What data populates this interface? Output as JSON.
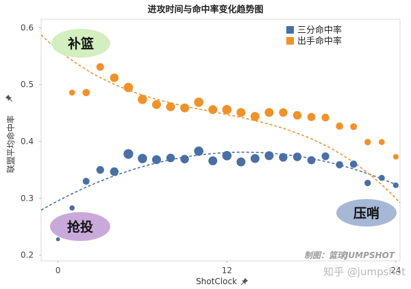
{
  "chart_data": {
    "type": "scatter",
    "title": "进攻时间与命中率变化趋势图",
    "xlabel": "ShotClock",
    "ylabel": "联盟平均命中率",
    "xlim": [
      -1.2,
      24.3
    ],
    "ylim": [
      0.19,
      0.615
    ],
    "x_ticks": [
      0,
      12,
      24
    ],
    "x_tick_labels": [
      "0",
      "12",
      "24"
    ],
    "y_ticks": [
      0.2,
      0.3,
      0.4,
      0.5,
      0.6
    ],
    "y_tick_labels": [
      "0.2",
      "0.3",
      "0.4",
      "0.5",
      "0.6"
    ],
    "legend_position": "top-right",
    "grid": false,
    "series": [
      {
        "name": "三分命中率",
        "color": "#4a6fa5",
        "points": [
          {
            "x": 0,
            "y": 0.228,
            "w": 0.15
          },
          {
            "x": 1,
            "y": 0.283,
            "w": 0.3
          },
          {
            "x": 2,
            "y": 0.33,
            "w": 0.5
          },
          {
            "x": 3,
            "y": 0.35,
            "w": 0.6
          },
          {
            "x": 4,
            "y": 0.347,
            "w": 0.7
          },
          {
            "x": 5,
            "y": 0.378,
            "w": 0.85
          },
          {
            "x": 6,
            "y": 0.37,
            "w": 0.8
          },
          {
            "x": 7,
            "y": 0.368,
            "w": 0.75
          },
          {
            "x": 8,
            "y": 0.371,
            "w": 0.7
          },
          {
            "x": 9,
            "y": 0.369,
            "w": 0.7
          },
          {
            "x": 10,
            "y": 0.383,
            "w": 0.8
          },
          {
            "x": 11,
            "y": 0.366,
            "w": 0.75
          },
          {
            "x": 12,
            "y": 0.375,
            "w": 0.8
          },
          {
            "x": 13,
            "y": 0.364,
            "w": 0.75
          },
          {
            "x": 14,
            "y": 0.37,
            "w": 0.75
          },
          {
            "x": 15,
            "y": 0.375,
            "w": 0.75
          },
          {
            "x": 16,
            "y": 0.372,
            "w": 0.7
          },
          {
            "x": 17,
            "y": 0.373,
            "w": 0.7
          },
          {
            "x": 18,
            "y": 0.367,
            "w": 0.65
          },
          {
            "x": 19,
            "y": 0.374,
            "w": 0.6
          },
          {
            "x": 20,
            "y": 0.359,
            "w": 0.55
          },
          {
            "x": 21,
            "y": 0.36,
            "w": 0.55
          },
          {
            "x": 22,
            "y": 0.327,
            "w": 0.45
          },
          {
            "x": 23,
            "y": 0.336,
            "w": 0.4
          },
          {
            "x": 24,
            "y": 0.323,
            "w": 0.35
          }
        ],
        "trend": {
          "type": "quadratic",
          "x_range": [
            -1.2,
            24.3
          ],
          "coef": [
            0.2955,
            0.01296,
            -0.0004902
          ]
        }
      },
      {
        "name": "出手命中率",
        "color": "#f0922a",
        "points": [
          {
            "x": 0,
            "y": 0.584,
            "w": 0.15
          },
          {
            "x": 1,
            "y": 0.486,
            "w": 0.4
          },
          {
            "x": 2,
            "y": 0.486,
            "w": 0.55
          },
          {
            "x": 3,
            "y": 0.531,
            "w": 0.6
          },
          {
            "x": 4,
            "y": 0.512,
            "w": 0.7
          },
          {
            "x": 5,
            "y": 0.495,
            "w": 0.8
          },
          {
            "x": 6,
            "y": 0.474,
            "w": 0.8
          },
          {
            "x": 7,
            "y": 0.465,
            "w": 0.75
          },
          {
            "x": 8,
            "y": 0.461,
            "w": 0.75
          },
          {
            "x": 9,
            "y": 0.459,
            "w": 0.75
          },
          {
            "x": 10,
            "y": 0.469,
            "w": 0.8
          },
          {
            "x": 11,
            "y": 0.456,
            "w": 0.75
          },
          {
            "x": 12,
            "y": 0.456,
            "w": 0.8
          },
          {
            "x": 13,
            "y": 0.451,
            "w": 0.75
          },
          {
            "x": 14,
            "y": 0.444,
            "w": 0.75
          },
          {
            "x": 15,
            "y": 0.451,
            "w": 0.75
          },
          {
            "x": 16,
            "y": 0.451,
            "w": 0.7
          },
          {
            "x": 17,
            "y": 0.446,
            "w": 0.7
          },
          {
            "x": 18,
            "y": 0.443,
            "w": 0.65
          },
          {
            "x": 19,
            "y": 0.442,
            "w": 0.6
          },
          {
            "x": 20,
            "y": 0.427,
            "w": 0.55
          },
          {
            "x": 21,
            "y": 0.426,
            "w": 0.5
          },
          {
            "x": 22,
            "y": 0.399,
            "w": 0.45
          },
          {
            "x": 23,
            "y": 0.399,
            "w": 0.4
          },
          {
            "x": 24,
            "y": 0.373,
            "w": 0.35
          }
        ],
        "trend": {
          "type": "cubic",
          "x_range": [
            -1.2,
            24.3
          ],
          "coef": [
            0.5612,
            -0.01998,
            0.00137,
            -4.13e-05
          ]
        }
      }
    ],
    "annotations": [
      {
        "label": "补篮",
        "color": "#d3eebf"
      },
      {
        "label": "抢投",
        "color": "#c9a9da"
      },
      {
        "label": "压哨",
        "color": "#a7b8d6"
      }
    ],
    "watermarks": [
      "制图：篮球JUMPSHOT",
      "知乎 @jumpshot"
    ]
  }
}
